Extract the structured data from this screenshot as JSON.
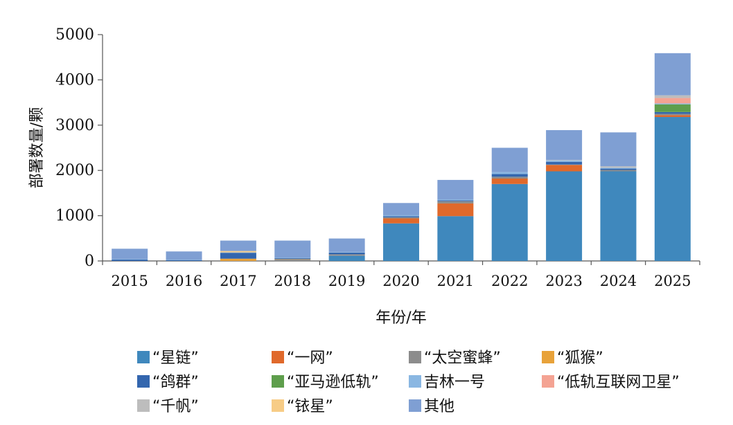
{
  "chart_data": {
    "type": "bar",
    "stacked": true,
    "title": "",
    "xlabel": "年份/年",
    "ylabel": "部署数量/颗",
    "ylim": [
      0,
      5000
    ],
    "y_ticks": [
      0,
      1000,
      2000,
      3000,
      4000,
      5000
    ],
    "categories": [
      "2015",
      "2016",
      "2017",
      "2018",
      "2019",
      "2020",
      "2021",
      "2022",
      "2023",
      "2024",
      "2025"
    ],
    "series": [
      {
        "name": "“星链”",
        "color": "#3F88BD",
        "values": [
          0,
          0,
          0,
          0,
          120,
          830,
          990,
          1700,
          1980,
          1980,
          3180
        ]
      },
      {
        "name": "“一网”",
        "color": "#E0692B",
        "values": [
          0,
          0,
          0,
          0,
          6,
          110,
          280,
          120,
          140,
          0,
          40
        ]
      },
      {
        "name": "“太空蜜蜂”",
        "color": "#8C8C8C",
        "values": [
          0,
          0,
          0,
          30,
          20,
          25,
          50,
          40,
          10,
          30,
          30
        ]
      },
      {
        "name": "“狐猴”",
        "color": "#E8A23A",
        "values": [
          0,
          0,
          50,
          10,
          0,
          0,
          0,
          0,
          0,
          0,
          0
        ]
      },
      {
        "name": "“鸽群”",
        "color": "#3366AE",
        "values": [
          30,
          20,
          130,
          20,
          40,
          25,
          20,
          60,
          60,
          30,
          40
        ]
      },
      {
        "name": "“亚马逊低轨”",
        "color": "#5E9E4C",
        "values": [
          0,
          0,
          0,
          0,
          0,
          0,
          0,
          0,
          0,
          0,
          170
        ]
      },
      {
        "name": "吉林一号",
        "color": "#8AB7E2",
        "values": [
          10,
          10,
          10,
          10,
          10,
          20,
          20,
          40,
          30,
          20,
          20
        ]
      },
      {
        "name": "“低轨互联网卫星”",
        "color": "#F4A393",
        "values": [
          0,
          0,
          0,
          0,
          0,
          0,
          0,
          0,
          0,
          0,
          120
        ]
      },
      {
        "name": "“千帆”",
        "color": "#BDBDBD",
        "values": [
          0,
          0,
          0,
          0,
          0,
          0,
          0,
          0,
          10,
          30,
          60
        ]
      },
      {
        "name": "“铱星”",
        "color": "#F7CC86",
        "values": [
          0,
          0,
          30,
          0,
          0,
          0,
          0,
          0,
          0,
          0,
          0
        ]
      },
      {
        "name": "其他",
        "color": "#7F9FD3",
        "values": [
          230,
          180,
          230,
          380,
          300,
          270,
          430,
          540,
          660,
          750,
          930
        ]
      }
    ],
    "legend_position": "bottom"
  }
}
